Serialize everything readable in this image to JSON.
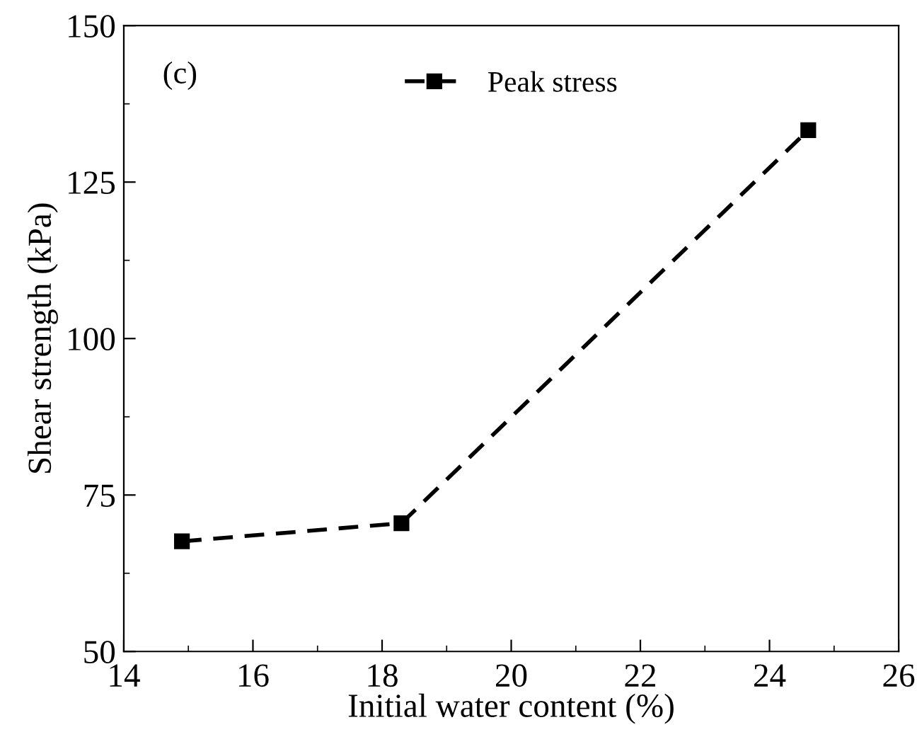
{
  "chart_data": {
    "type": "line",
    "xlabel": "Initial water content (%)",
    "ylabel": "Shear strength (kPa)",
    "annotations": [
      "(c)"
    ],
    "x": [
      14.9,
      18.3,
      24.6
    ],
    "series": [
      {
        "name": "Peak stress",
        "color": "#000000",
        "values": [
          67.6,
          70.5,
          133.3
        ]
      }
    ],
    "xlim": [
      14,
      26
    ],
    "xticks": [
      14,
      16,
      18,
      20,
      22,
      24,
      26
    ],
    "ylim": [
      50,
      150
    ],
    "yticks": [
      50,
      75,
      100,
      125,
      150
    ],
    "marker": "square",
    "line_style": "dashed",
    "legend": "top",
    "grid": false
  }
}
